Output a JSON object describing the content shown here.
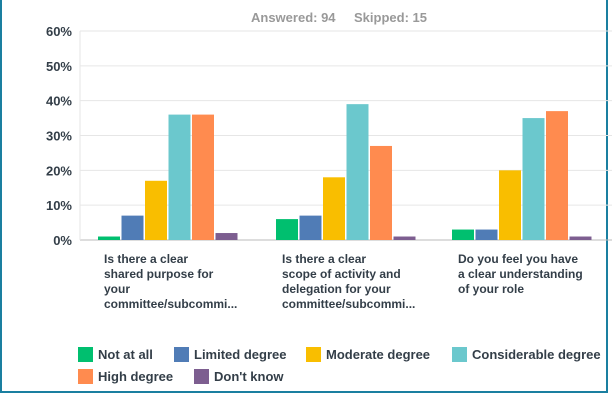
{
  "header": {
    "answered": "Answered: 94",
    "skipped": "Skipped: 15"
  },
  "chart_data": {
    "type": "bar",
    "ylim": [
      0,
      60
    ],
    "y_ticks": [
      "0%",
      "10%",
      "20%",
      "30%",
      "40%",
      "50%",
      "60%"
    ],
    "grid": true,
    "legend_position": "bottom",
    "categories": [
      [
        "Is there a clear",
        "shared purpose for",
        "your",
        "committee/subcommi..."
      ],
      [
        "Is there a clear",
        "scope of activity and",
        "delegation for your",
        "committee/subcommi..."
      ],
      [
        "Do you feel you have",
        "a clear understanding",
        "of your role"
      ]
    ],
    "series": [
      {
        "name": "Not at all",
        "color": "#00bf6f",
        "values": [
          1,
          6,
          3
        ]
      },
      {
        "name": "Limited degree",
        "color": "#507cb6",
        "values": [
          7,
          7,
          3
        ]
      },
      {
        "name": "Moderate degree",
        "color": "#f9be00",
        "values": [
          17,
          18,
          20
        ]
      },
      {
        "name": "Considerable degree",
        "color": "#6bc8cd",
        "values": [
          36,
          39,
          35
        ]
      },
      {
        "name": "High degree",
        "color": "#ff8b4f",
        "values": [
          36,
          27,
          37
        ]
      },
      {
        "name": "Don't know",
        "color": "#7d5e90",
        "values": [
          2,
          1,
          1
        ]
      }
    ]
  }
}
